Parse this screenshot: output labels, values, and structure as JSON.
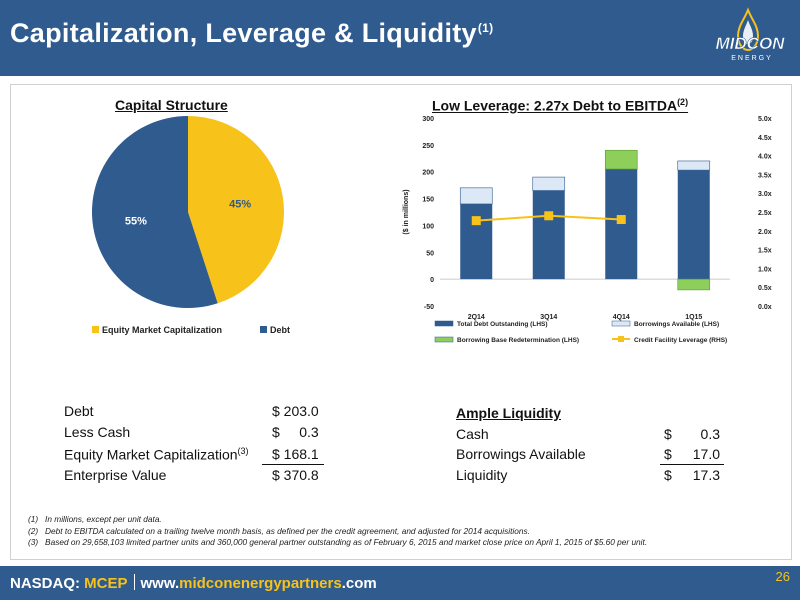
{
  "header": {
    "title": "Capitalization, Leverage & Liquidity",
    "title_sup": "(1)"
  },
  "logo": {
    "name": "MIDCON",
    "sub": "ENERGY"
  },
  "colors": {
    "blue": "#2f5b8f",
    "yellow": "#f7c21a",
    "green": "#8dcf5a",
    "light_blue": "#dce8f5"
  },
  "chart_data": [
    {
      "type": "pie",
      "title": "Capital Structure",
      "slices": [
        {
          "name": "Equity Market Capitalization",
          "value": 45,
          "label": "45%",
          "color": "#f7c21a"
        },
        {
          "name": "Debt",
          "value": 55,
          "label": "55%",
          "color": "#2f5b8f"
        }
      ],
      "legend_position": "bottom"
    },
    {
      "type": "bar",
      "title": "Low Leverage: 2.27x Debt to EBITDA",
      "title_sup": "(2)",
      "categories": [
        "2Q14",
        "3Q14",
        "4Q14",
        "1Q15"
      ],
      "ylabel": "($ in millions)",
      "ylim": [
        -50,
        300
      ],
      "yticks": [
        -50,
        0,
        50,
        100,
        150,
        200,
        250,
        300
      ],
      "y2lim": [
        0,
        5
      ],
      "y2ticks": [
        "0.0x",
        "0.5x",
        "1.0x",
        "1.5x",
        "2.0x",
        "2.5x",
        "3.0x",
        "3.5x",
        "4.0x",
        "4.5x",
        "5.0x"
      ],
      "series": [
        {
          "name": "Total Debt Outstanding (LHS)",
          "values": [
            140,
            165,
            205,
            203
          ],
          "color": "#2f5b8f"
        },
        {
          "name": "Borrowings Available (LHS)",
          "values": [
            30,
            25,
            0,
            17
          ],
          "color": "#dce8f5"
        },
        {
          "name": "Borrowing Base Redetermination (LHS)",
          "values": [
            0,
            0,
            35,
            -20
          ],
          "color": "#8dcf5a"
        },
        {
          "name": "Credit Facility Leverage (RHS)",
          "type": "line",
          "values": [
            2.27,
            2.4,
            2.3,
            null
          ],
          "color": "#f7c21a"
        }
      ],
      "legend_position": "bottom"
    }
  ],
  "cap_table": {
    "rows": [
      {
        "label": "Debt",
        "sup": "",
        "value": "$ 203.0"
      },
      {
        "label": "Less Cash",
        "sup": "",
        "value": "$     0.3"
      },
      {
        "label": "Equity Market Capitalization",
        "sup": "(3)",
        "value": "$ 168.1"
      },
      {
        "label": "Enterprise Value",
        "sup": "",
        "value": "$ 370.8"
      }
    ]
  },
  "liquidity": {
    "title": "Ample Liquidity",
    "rows": [
      {
        "label": "Cash",
        "currency": "$",
        "value": "0.3"
      },
      {
        "label": "Borrowings Available",
        "currency": "$",
        "value": "17.0"
      },
      {
        "label": "Liquidity",
        "currency": "$",
        "value": "17.3"
      }
    ]
  },
  "footnotes": [
    "(1)   In millions, except per unit data.",
    "(2)   Debt to EBITDA calculated on a trailing twelve month basis, as defined per the credit agreement, and adjusted for 2014 acquisitions.",
    "(3)   Based on 29,658,103 limited partner units and 360,000 general partner outstanding as of February 6, 2015 and market close price on April 1, 2015 of $5.60 per unit."
  ],
  "footer": {
    "exchange": "NASDAQ:",
    "ticker": "MCEP",
    "url_prefix": "www.",
    "url_brand": "midconenergypartners",
    "url_suffix": ".com"
  },
  "page_number": "26"
}
